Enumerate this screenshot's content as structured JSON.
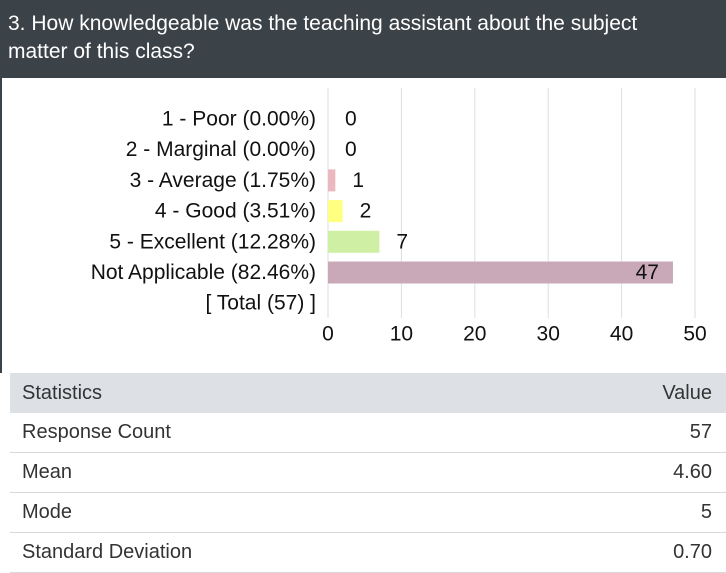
{
  "header": {
    "title": "3. How knowledgeable was the teaching assistant about the subject matter of this class?"
  },
  "chart_data": {
    "type": "bar",
    "orientation": "horizontal",
    "categories": [
      "1 - Poor (0.00%)",
      "2 - Marginal (0.00%)",
      "3 - Average (1.75%)",
      "4 - Good (3.51%)",
      "5 - Excellent (12.28%)",
      "Not Applicable (82.46%)"
    ],
    "values": [
      0,
      0,
      1,
      2,
      7,
      47
    ],
    "colors": [
      "#e8a0a0",
      "#f0c890",
      "#ebb8c0",
      "#ffff80",
      "#cff0a4",
      "#c9a9b7"
    ],
    "total_label": "[ Total (57) ]",
    "xlim": [
      0,
      50
    ],
    "xticks": [
      0,
      10,
      20,
      30,
      40,
      50
    ],
    "grid": true
  },
  "table": {
    "columns": [
      "Statistics",
      "Value"
    ],
    "rows": [
      [
        "Response Count",
        "57"
      ],
      [
        "Mean",
        "4.60"
      ],
      [
        "Mode",
        "5"
      ],
      [
        "Standard Deviation",
        "0.70"
      ]
    ]
  }
}
